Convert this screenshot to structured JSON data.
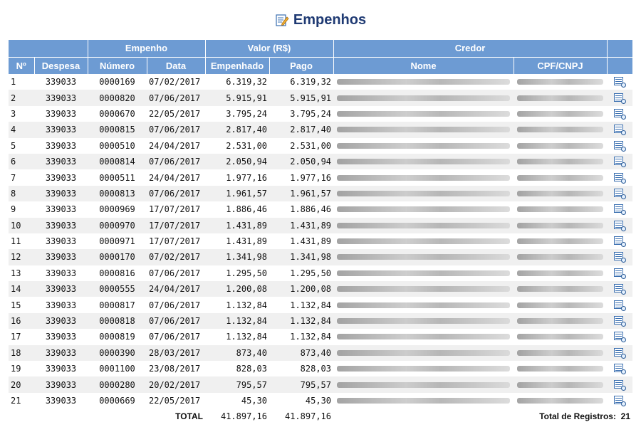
{
  "page": {
    "title": "Empenhos",
    "title_icon": "edit-document-icon"
  },
  "colors": {
    "header_bg": "#6d9bd3",
    "title": "#1f3a73",
    "row_alt": "#f0f0f0"
  },
  "table": {
    "group_headers": {
      "empenho": "Empenho",
      "valor": "Valor (R$)",
      "credor": "Credor"
    },
    "headers": {
      "numero_ordem": "Nº",
      "despesa": "Despesa",
      "numero": "Número",
      "data": "Data",
      "empenhado": "Empenhado",
      "pago": "Pago",
      "nome": "Nome",
      "cpf_cnpj": "CPF/CNPJ"
    },
    "rows": [
      {
        "n": "1",
        "despesa": "339033",
        "numero": "0000169",
        "data": "07/02/2017",
        "empenhado": "6.319,32",
        "pago": "6.319,32"
      },
      {
        "n": "2",
        "despesa": "339033",
        "numero": "0000820",
        "data": "07/06/2017",
        "empenhado": "5.915,91",
        "pago": "5.915,91"
      },
      {
        "n": "3",
        "despesa": "339033",
        "numero": "0000670",
        "data": "22/05/2017",
        "empenhado": "3.795,24",
        "pago": "3.795,24"
      },
      {
        "n": "4",
        "despesa": "339033",
        "numero": "0000815",
        "data": "07/06/2017",
        "empenhado": "2.817,40",
        "pago": "2.817,40"
      },
      {
        "n": "5",
        "despesa": "339033",
        "numero": "0000510",
        "data": "24/04/2017",
        "empenhado": "2.531,00",
        "pago": "2.531,00"
      },
      {
        "n": "6",
        "despesa": "339033",
        "numero": "0000814",
        "data": "07/06/2017",
        "empenhado": "2.050,94",
        "pago": "2.050,94"
      },
      {
        "n": "7",
        "despesa": "339033",
        "numero": "0000511",
        "data": "24/04/2017",
        "empenhado": "1.977,16",
        "pago": "1.977,16"
      },
      {
        "n": "8",
        "despesa": "339033",
        "numero": "0000813",
        "data": "07/06/2017",
        "empenhado": "1.961,57",
        "pago": "1.961,57"
      },
      {
        "n": "9",
        "despesa": "339033",
        "numero": "0000969",
        "data": "17/07/2017",
        "empenhado": "1.886,46",
        "pago": "1.886,46"
      },
      {
        "n": "10",
        "despesa": "339033",
        "numero": "0000970",
        "data": "17/07/2017",
        "empenhado": "1.431,89",
        "pago": "1.431,89"
      },
      {
        "n": "11",
        "despesa": "339033",
        "numero": "0000971",
        "data": "17/07/2017",
        "empenhado": "1.431,89",
        "pago": "1.431,89"
      },
      {
        "n": "12",
        "despesa": "339033",
        "numero": "0000170",
        "data": "07/02/2017",
        "empenhado": "1.341,98",
        "pago": "1.341,98"
      },
      {
        "n": "13",
        "despesa": "339033",
        "numero": "0000816",
        "data": "07/06/2017",
        "empenhado": "1.295,50",
        "pago": "1.295,50"
      },
      {
        "n": "14",
        "despesa": "339033",
        "numero": "0000555",
        "data": "24/04/2017",
        "empenhado": "1.200,08",
        "pago": "1.200,08"
      },
      {
        "n": "15",
        "despesa": "339033",
        "numero": "0000817",
        "data": "07/06/2017",
        "empenhado": "1.132,84",
        "pago": "1.132,84"
      },
      {
        "n": "16",
        "despesa": "339033",
        "numero": "0000818",
        "data": "07/06/2017",
        "empenhado": "1.132,84",
        "pago": "1.132,84"
      },
      {
        "n": "17",
        "despesa": "339033",
        "numero": "0000819",
        "data": "07/06/2017",
        "empenhado": "1.132,84",
        "pago": "1.132,84"
      },
      {
        "n": "18",
        "despesa": "339033",
        "numero": "0000390",
        "data": "28/03/2017",
        "empenhado": "873,40",
        "pago": "873,40"
      },
      {
        "n": "19",
        "despesa": "339033",
        "numero": "0001100",
        "data": "23/08/2017",
        "empenhado": "828,03",
        "pago": "828,03"
      },
      {
        "n": "20",
        "despesa": "339033",
        "numero": "0000280",
        "data": "20/02/2017",
        "empenhado": "795,57",
        "pago": "795,57"
      },
      {
        "n": "21",
        "despesa": "339033",
        "numero": "0000669",
        "data": "22/05/2017",
        "empenhado": "45,30",
        "pago": "45,30"
      }
    ],
    "row_action_icon": "document-magnifier-icon",
    "footer": {
      "total_label": "TOTAL",
      "total_empenhado": "41.897,16",
      "total_pago": "41.897,16",
      "registros_label": "Total de Registros:",
      "registros_count": "21"
    }
  }
}
